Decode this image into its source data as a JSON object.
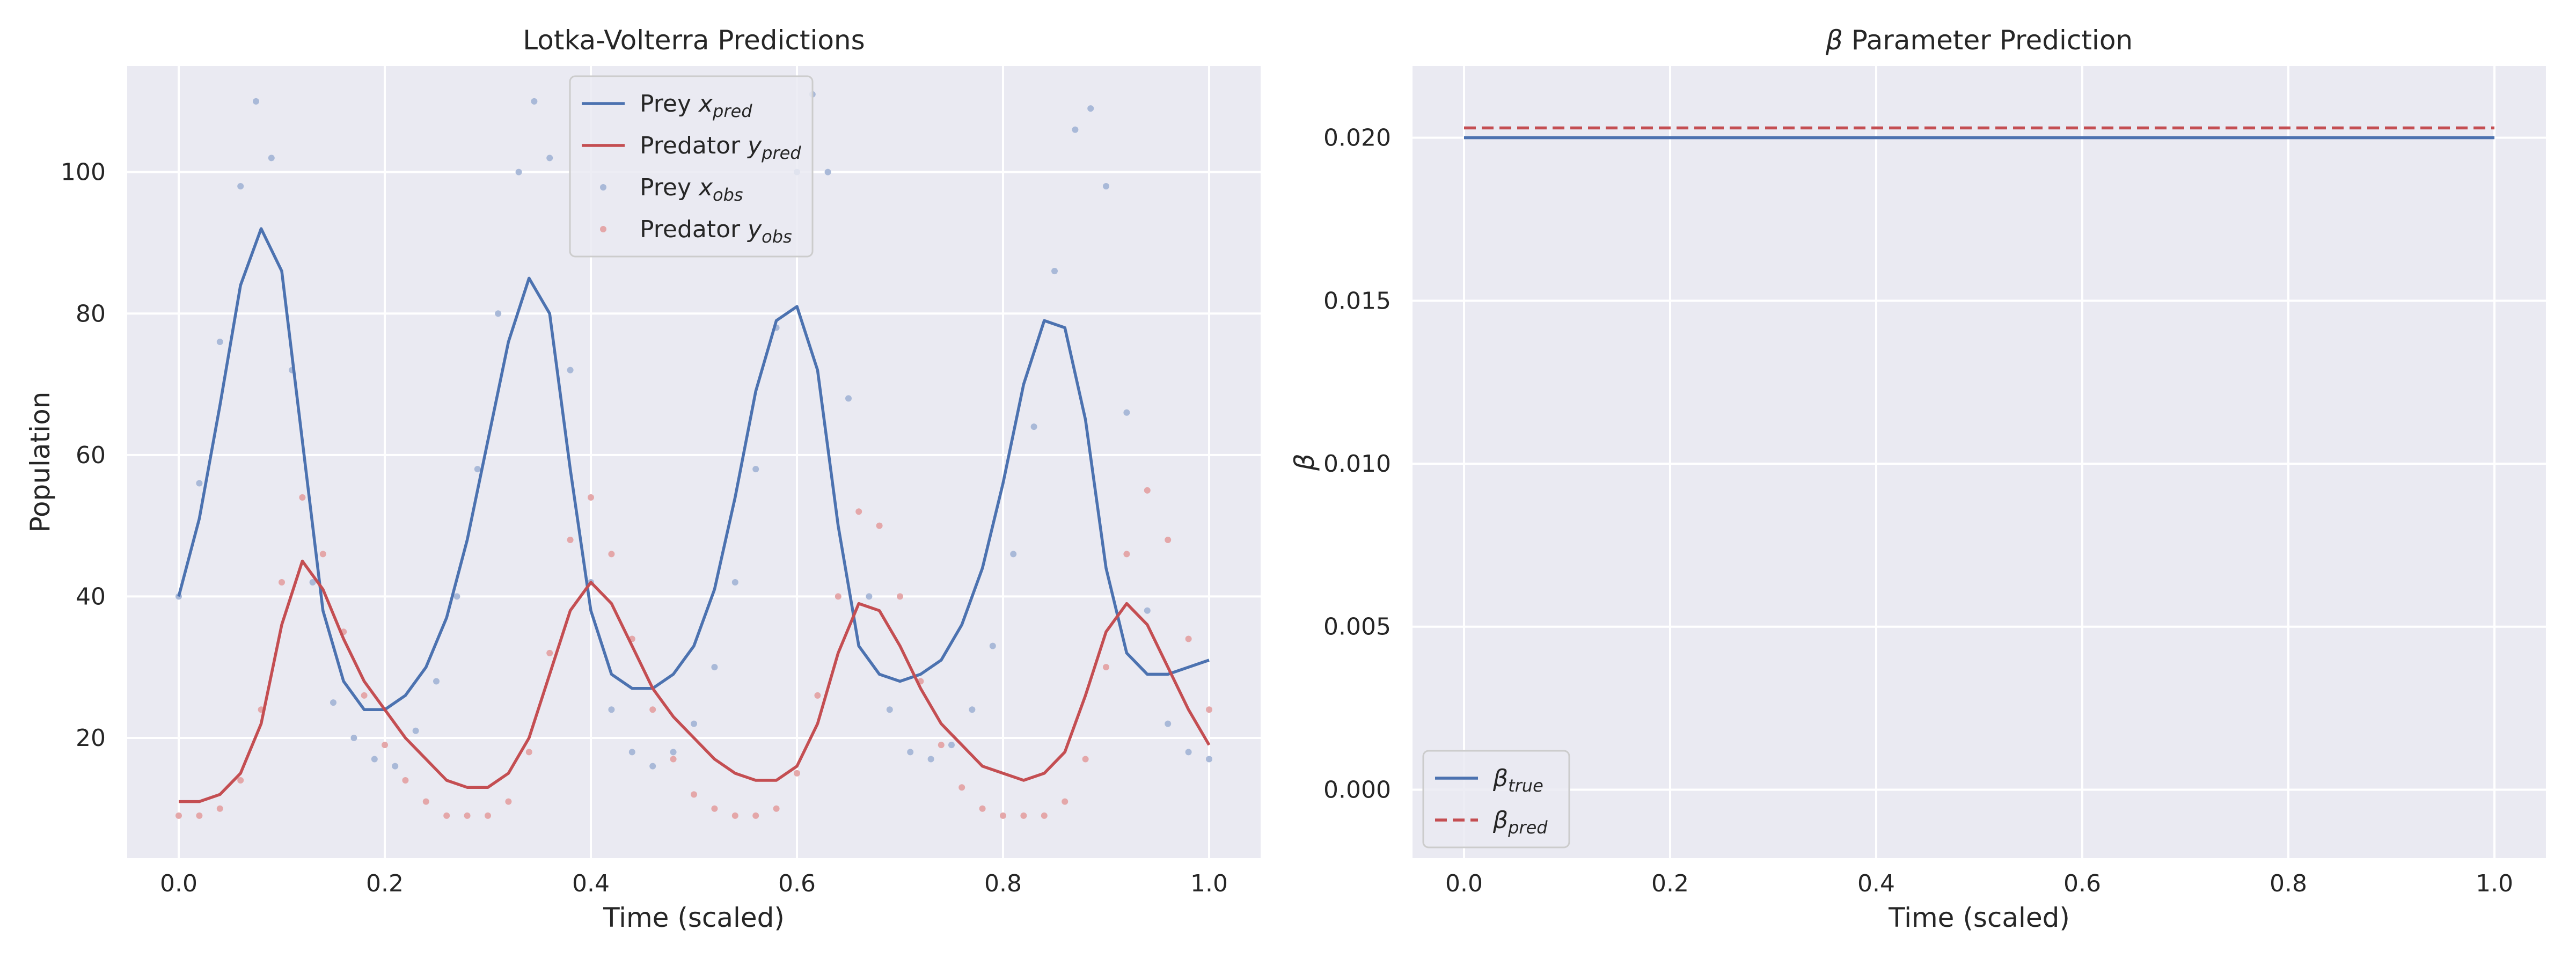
{
  "figure": {
    "background": "#ffffff",
    "panel_bg": "#eaeaf2",
    "grid_color": "#ffffff"
  },
  "chart_data": [
    {
      "type": "line",
      "title": "Lotka-Volterra Predictions",
      "xlabel": "Time (scaled)",
      "ylabel": "Population",
      "xlim": [
        -0.05,
        1.05
      ],
      "ylim": [
        3,
        115
      ],
      "xticks": [
        0.0,
        0.2,
        0.4,
        0.6,
        0.8,
        1.0
      ],
      "xtick_labels": [
        "0.0",
        "0.2",
        "0.4",
        "0.6",
        "0.8",
        "1.0"
      ],
      "yticks": [
        20,
        40,
        60,
        80,
        100
      ],
      "ytick_labels": [
        "20",
        "40",
        "60",
        "80",
        "100"
      ],
      "grid": true,
      "legend": {
        "position": "top-center",
        "entries": [
          {
            "base": "Prey ",
            "sym": "x",
            "sub": "pred",
            "kind": "line",
            "color": "#4c72b0"
          },
          {
            "base": "Predator ",
            "sym": "y",
            "sub": "pred",
            "kind": "line",
            "color": "#c44e52"
          },
          {
            "base": "Prey ",
            "sym": "x",
            "sub": "obs",
            "kind": "marker",
            "color": "#a9b9d8"
          },
          {
            "base": "Predator ",
            "sym": "y",
            "sub": "obs",
            "kind": "marker",
            "color": "#e4a7a9"
          }
        ]
      },
      "series": [
        {
          "name": "Prey x_pred",
          "kind": "line",
          "color": "#4c72b0",
          "x": [
            0.0,
            0.02,
            0.04,
            0.06,
            0.08,
            0.1,
            0.12,
            0.14,
            0.16,
            0.18,
            0.2,
            0.22,
            0.24,
            0.26,
            0.28,
            0.3,
            0.32,
            0.34,
            0.36,
            0.38,
            0.4,
            0.42,
            0.44,
            0.46,
            0.48,
            0.5,
            0.52,
            0.54,
            0.56,
            0.58,
            0.6,
            0.62,
            0.64,
            0.66,
            0.68,
            0.7,
            0.72,
            0.74,
            0.76,
            0.78,
            0.8,
            0.82,
            0.84,
            0.86,
            0.88,
            0.9,
            0.92,
            0.94,
            0.96,
            0.98,
            1.0
          ],
          "y": [
            40,
            51,
            67,
            84,
            92,
            86,
            62,
            38,
            28,
            24,
            24,
            26,
            30,
            37,
            48,
            62,
            76,
            85,
            80,
            58,
            38,
            29,
            27,
            27,
            29,
            33,
            41,
            54,
            69,
            79,
            81,
            72,
            50,
            33,
            29,
            28,
            29,
            31,
            36,
            44,
            56,
            70,
            79,
            78,
            65,
            44,
            32,
            29,
            29,
            30,
            31
          ]
        },
        {
          "name": "Predator y_pred",
          "kind": "line",
          "color": "#c44e52",
          "x": [
            0.0,
            0.02,
            0.04,
            0.06,
            0.08,
            0.1,
            0.12,
            0.14,
            0.16,
            0.18,
            0.2,
            0.22,
            0.24,
            0.26,
            0.28,
            0.3,
            0.32,
            0.34,
            0.36,
            0.38,
            0.4,
            0.42,
            0.44,
            0.46,
            0.48,
            0.5,
            0.52,
            0.54,
            0.56,
            0.58,
            0.6,
            0.62,
            0.64,
            0.66,
            0.68,
            0.7,
            0.72,
            0.74,
            0.76,
            0.78,
            0.8,
            0.82,
            0.84,
            0.86,
            0.88,
            0.9,
            0.92,
            0.94,
            0.96,
            0.98,
            1.0
          ],
          "y": [
            11,
            11,
            12,
            15,
            22,
            36,
            45,
            41,
            34,
            28,
            24,
            20,
            17,
            14,
            13,
            13,
            15,
            20,
            29,
            38,
            42,
            39,
            33,
            27,
            23,
            20,
            17,
            15,
            14,
            14,
            16,
            22,
            32,
            39,
            38,
            33,
            27,
            22,
            19,
            16,
            15,
            14,
            15,
            18,
            26,
            35,
            39,
            36,
            30,
            24,
            19
          ]
        },
        {
          "name": "Prey x_obs",
          "kind": "scatter",
          "color": "#a9b9d8",
          "x": [
            0.0,
            0.02,
            0.04,
            0.06,
            0.075,
            0.09,
            0.11,
            0.13,
            0.15,
            0.17,
            0.19,
            0.21,
            0.23,
            0.25,
            0.27,
            0.29,
            0.31,
            0.33,
            0.345,
            0.36,
            0.38,
            0.4,
            0.42,
            0.44,
            0.46,
            0.48,
            0.5,
            0.52,
            0.54,
            0.56,
            0.58,
            0.6,
            0.615,
            0.63,
            0.65,
            0.67,
            0.69,
            0.71,
            0.73,
            0.75,
            0.77,
            0.79,
            0.81,
            0.83,
            0.85,
            0.87,
            0.885,
            0.9,
            0.92,
            0.94,
            0.96,
            0.98,
            1.0
          ],
          "y": [
            40,
            56,
            76,
            98,
            110,
            102,
            72,
            42,
            25,
            20,
            17,
            16,
            21,
            28,
            40,
            58,
            80,
            100,
            110,
            102,
            72,
            42,
            24,
            18,
            16,
            18,
            22,
            30,
            42,
            58,
            78,
            100,
            111,
            100,
            68,
            40,
            24,
            18,
            17,
            19,
            24,
            33,
            46,
            64,
            86,
            106,
            109,
            98,
            66,
            38,
            22,
            18,
            17
          ]
        },
        {
          "name": "Predator y_obs",
          "kind": "scatter",
          "color": "#e4a7a9",
          "x": [
            0.0,
            0.02,
            0.04,
            0.06,
            0.08,
            0.1,
            0.12,
            0.14,
            0.16,
            0.18,
            0.2,
            0.22,
            0.24,
            0.26,
            0.28,
            0.3,
            0.32,
            0.34,
            0.36,
            0.38,
            0.4,
            0.42,
            0.44,
            0.46,
            0.48,
            0.5,
            0.52,
            0.54,
            0.56,
            0.58,
            0.6,
            0.62,
            0.64,
            0.66,
            0.68,
            0.7,
            0.72,
            0.74,
            0.76,
            0.78,
            0.8,
            0.82,
            0.84,
            0.86,
            0.88,
            0.9,
            0.92,
            0.94,
            0.96,
            0.98,
            1.0
          ],
          "y": [
            9,
            9,
            10,
            14,
            24,
            42,
            54,
            46,
            35,
            26,
            19,
            14,
            11,
            9,
            9,
            9,
            11,
            18,
            32,
            48,
            54,
            46,
            34,
            24,
            17,
            12,
            10,
            9,
            9,
            10,
            15,
            26,
            40,
            52,
            50,
            40,
            28,
            19,
            13,
            10,
            9,
            9,
            9,
            11,
            17,
            30,
            46,
            55,
            48,
            34,
            24
          ]
        }
      ]
    },
    {
      "type": "line",
      "title": "β Parameter Prediction",
      "title_sym": "β",
      "title_rest": " Parameter Prediction",
      "xlabel": "Time (scaled)",
      "ylabel": "β",
      "xlim": [
        -0.05,
        1.05
      ],
      "ylim": [
        -0.0021,
        0.0222
      ],
      "xticks": [
        0.0,
        0.2,
        0.4,
        0.6,
        0.8,
        1.0
      ],
      "xtick_labels": [
        "0.0",
        "0.2",
        "0.4",
        "0.6",
        "0.8",
        "1.0"
      ],
      "yticks": [
        0.0,
        0.005,
        0.01,
        0.015,
        0.02
      ],
      "ytick_labels": [
        "0.000",
        "0.005",
        "0.010",
        "0.015",
        "0.020"
      ],
      "grid": true,
      "legend": {
        "position": "lower-left",
        "entries": [
          {
            "base": "",
            "sym": "β",
            "sub": "true",
            "kind": "line",
            "color": "#4c72b0"
          },
          {
            "base": "",
            "sym": "β",
            "sub": "pred",
            "kind": "dashed",
            "color": "#c44e52"
          }
        ]
      },
      "series": [
        {
          "name": "β_true",
          "kind": "line",
          "color": "#4c72b0",
          "x": [
            0.0,
            1.0
          ],
          "y": [
            0.02,
            0.02
          ]
        },
        {
          "name": "β_pred",
          "kind": "dashed",
          "color": "#c44e52",
          "x": [
            0.0,
            1.0
          ],
          "y": [
            0.0203,
            0.0203
          ]
        }
      ]
    }
  ]
}
